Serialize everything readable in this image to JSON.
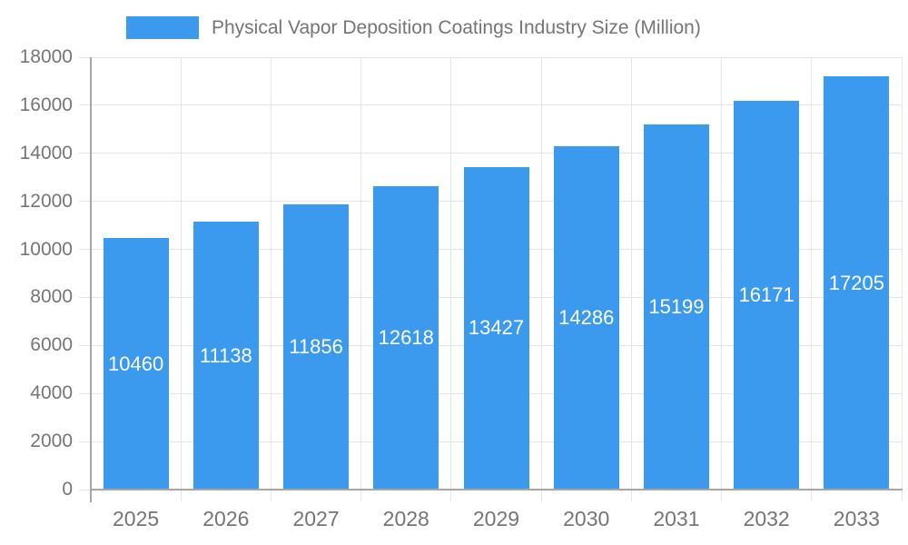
{
  "chart_data": {
    "type": "bar",
    "title": "Physical Vapor Deposition Coatings Industry Size (Million)",
    "series_name": "Physical Vapor Deposition Coatings Industry Size (Million)",
    "categories": [
      "2025",
      "2026",
      "2027",
      "2028",
      "2029",
      "2030",
      "2031",
      "2032",
      "2033"
    ],
    "values": [
      10460,
      11138,
      11856,
      12618,
      13427,
      14286,
      15199,
      16171,
      17205
    ],
    "xlabel": "",
    "ylabel": "",
    "ylim": [
      0,
      18000
    ],
    "ytick_step": 2000,
    "yticks": [
      0,
      2000,
      4000,
      6000,
      8000,
      10000,
      12000,
      14000,
      16000,
      18000
    ],
    "grid": true,
    "legend_position": "top",
    "value_labels": "inside-center",
    "colors": {
      "bar": "#3b99ee",
      "grid": "#e4e4e4",
      "axis": "#a6a6a6",
      "text": "#757575",
      "value_label": "#ffffff",
      "background": "#ffffff"
    }
  }
}
